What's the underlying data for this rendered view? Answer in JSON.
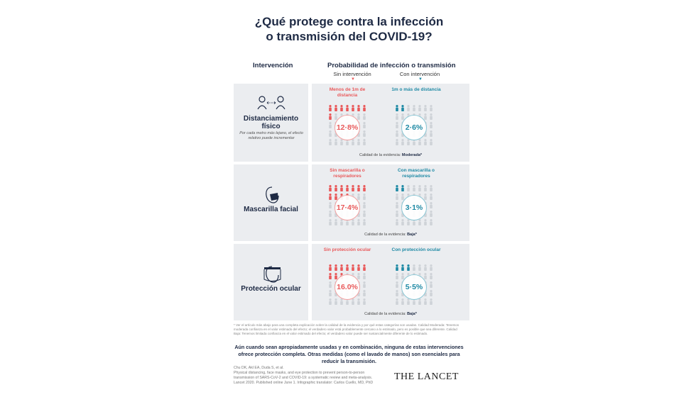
{
  "title": {
    "line1": "¿Qué protege contra la infección",
    "line2": "o transmisión del COVID-19?"
  },
  "headers": {
    "intervention": "Intervención",
    "probability": "Probabilidad de infección o transmisión",
    "without": "Sin intervención",
    "with": "Con intervención"
  },
  "colors": {
    "red": "#e9595a",
    "teal": "#1f8aa5",
    "faded": "#cfd3d8",
    "panel": "#ebedf0"
  },
  "interventions": [
    {
      "name": "Distanciamiento físico",
      "icon": "people-distance-icon",
      "note": "Por cada metro más lejano, el efecto relativo puede incrementar",
      "without_label": "Menos de 1m de distancia",
      "with_label": "1m o más de distancia",
      "without_pct": "12·8%",
      "with_pct": "2·6%",
      "without_value": 12.8,
      "with_value": 2.6,
      "evidence_label": "Calidad de la evidencia:",
      "evidence": "Moderada*"
    },
    {
      "name": "Mascarilla facial",
      "icon": "face-mask-icon",
      "note": "",
      "without_label": "Sin mascarilla o respiradores",
      "with_label": "Con mascarilla o respiradores",
      "without_pct": "17·4%",
      "with_pct": "3·1%",
      "without_value": 17.4,
      "with_value": 3.1,
      "evidence_label": "Calidad de la evidencia:",
      "evidence": "Baja*"
    },
    {
      "name": "Protección ocular",
      "icon": "face-shield-icon",
      "note": "",
      "without_label": "Sin protección ocular",
      "with_label": "Con protección ocular",
      "without_pct": "16.0%",
      "with_pct": "5·5%",
      "without_value": 16.0,
      "with_value": 5.5,
      "evidence_label": "Calidad de la evidencia:",
      "evidence": "Baja*"
    }
  ],
  "footnote": "* Ver el artículo más abajo para una completa explicación sobre la calidad de la evidencia y por qué estas categorías son usadas. Calidad Moderada: Tenemos moderada confianza en el valor estimado del efecto; el verdadero valor está probablemente cercano a lo estimado, pero es posible que sea diferente. Calidad Baja: Tenemos limitada confianza en el valor estimado del efecto; el verdadero valor puede ser sustancialmente diferente de lo estimado.",
  "summary": "Aún cuando sean apropiadamente usadas y en combinación, ninguna de estas intervenciones ofrece protección completa. Otras medidas (como el lavado de manos) son esenciales para reducir la transmisión.",
  "citation": [
    "Chu DK, Akl EA, Duda S, et al.",
    "Physical distancing, face masks, and eye protection to prevent person-to-person",
    "transmission of SARS-CoV-2 and COVID-19: a systematic review and meta-analysis.",
    "Lancet 2020. Published online June 1. Infographic translator: Carlos Cuello, MD, PhD"
  ],
  "brand": "THE LANCET"
}
